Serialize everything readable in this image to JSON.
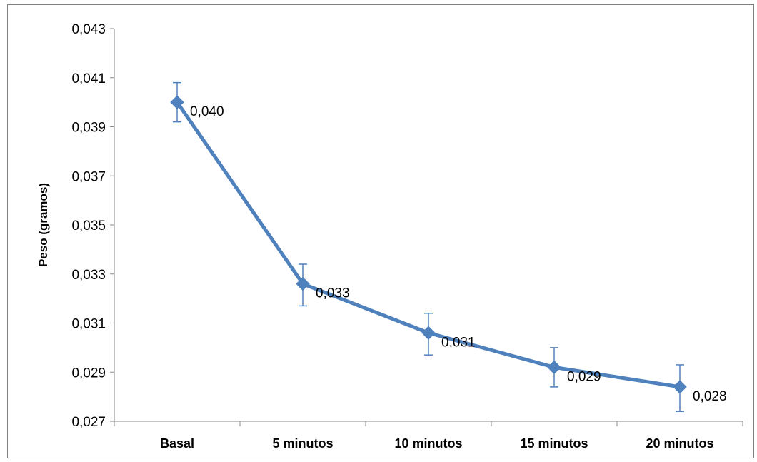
{
  "chart_data": {
    "type": "line",
    "title": "",
    "xlabel": "",
    "ylabel": "Peso (gramos)",
    "ylim": [
      0.027,
      0.043
    ],
    "y_ticks": [
      "0,027",
      "0,029",
      "0,031",
      "0,033",
      "0,035",
      "0,037",
      "0,039",
      "0,041",
      "0,043"
    ],
    "y_tick_values": [
      0.027,
      0.029,
      0.031,
      0.033,
      0.035,
      0.037,
      0.039,
      0.041,
      0.043
    ],
    "categories": [
      "Basal",
      "5 minutos",
      "10 minutos",
      "15 minutos",
      "20 minutos"
    ],
    "grid": false,
    "legend": "none",
    "series": [
      {
        "values": [
          0.04,
          0.0326,
          0.0306,
          0.0292,
          0.0284
        ],
        "data_labels": [
          "0,040",
          "0,033",
          "0,031",
          "0,029",
          "0,028"
        ],
        "error_low": [
          0.0392,
          0.0317,
          0.0297,
          0.0284,
          0.0274
        ],
        "error_high": [
          0.0408,
          0.0334,
          0.0314,
          0.03,
          0.0293
        ],
        "color": "#4f81bd",
        "marker": "diamond"
      }
    ]
  }
}
